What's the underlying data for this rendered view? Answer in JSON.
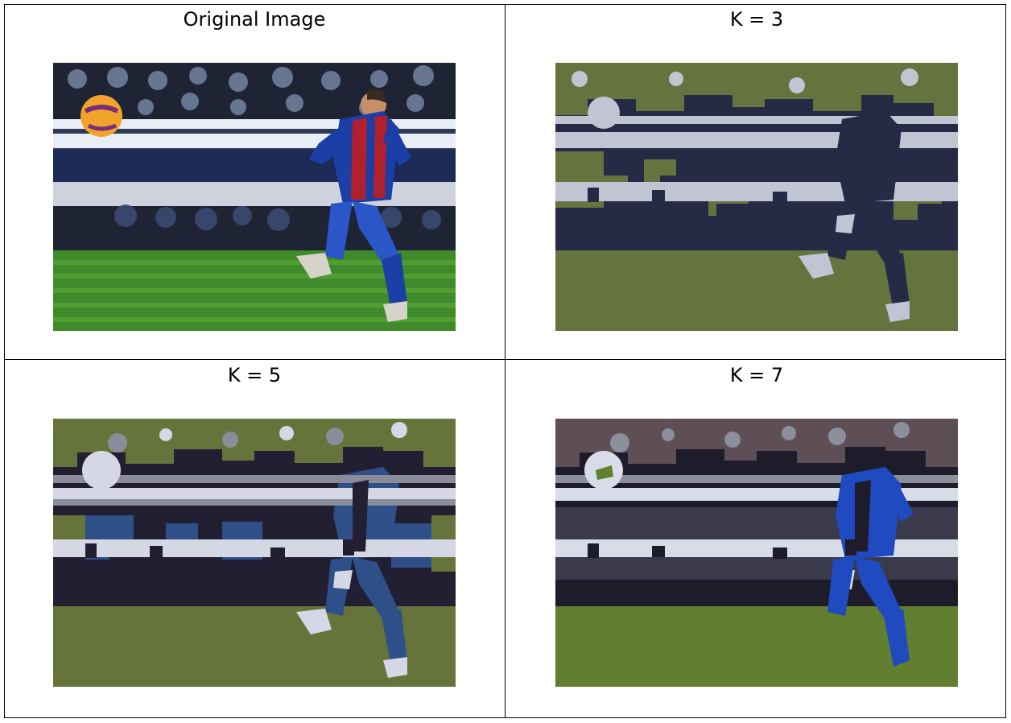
{
  "panels": [
    {
      "title": "Original Image",
      "palette": {
        "sky": "#2f3a57",
        "crowd_dark": "#1f2435",
        "crowd_light": "#7b8aa7",
        "barrier": "#e9edf5",
        "ad_board": "#1c2b56",
        "grass_dark": "#3f8a2a",
        "grass_light": "#5fae3a",
        "ball": "#f2a32a",
        "ball_dark": "#7a2d7a",
        "shirt_blue": "#1b3fa6",
        "shirt_red": "#b0202d",
        "skin": "#c58f6a",
        "sock": "#2a56c7",
        "boot": "#d7d3cb"
      }
    },
    {
      "title": "K = 3",
      "palette": {
        "c1": "#262a44",
        "c2": "#65743e",
        "c3": "#c1c4d2"
      }
    },
    {
      "title": "K = 5",
      "palette": {
        "c1": "#231f33",
        "c2": "#66743c",
        "c3": "#d5d8e4",
        "c4": "#2f4f88",
        "c5": "#8b8c9a"
      }
    },
    {
      "title": "K = 7",
      "palette": {
        "c1": "#1e1b2b",
        "c2": "#617f2f",
        "c3": "#d7dce8",
        "c4": "#1f4ac0",
        "c5": "#8b8e9b",
        "c6": "#5e4f57",
        "c7": "#3a3a4c"
      }
    }
  ]
}
